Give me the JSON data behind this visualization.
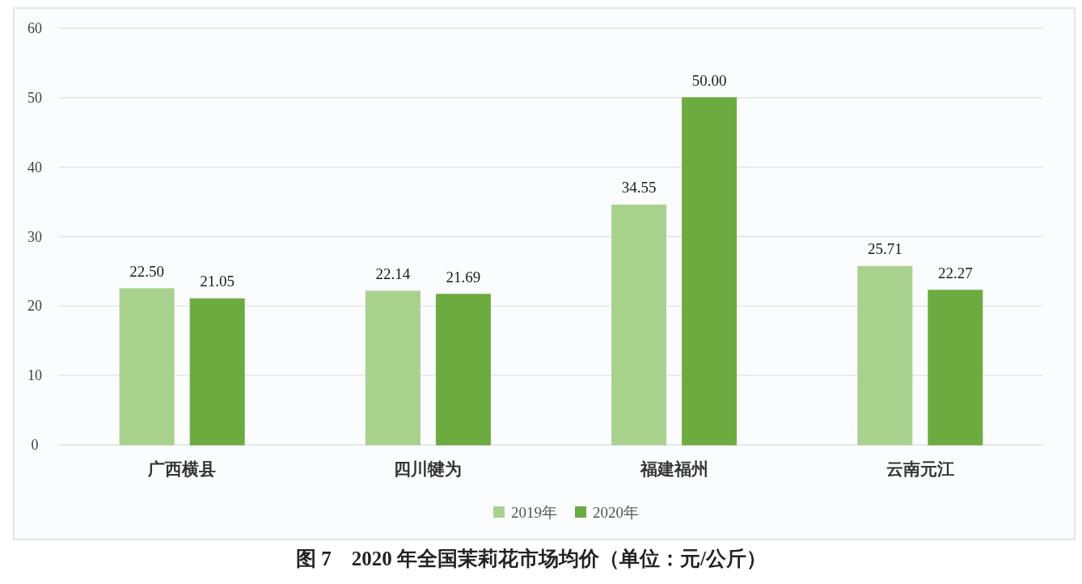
{
  "chart_data": {
    "type": "bar",
    "title": "图 7　2020 年全国茉莉花市场均价（单位：元/公斤）",
    "categories": [
      "广西横县",
      "四川犍为",
      "福建福州",
      "云南元江"
    ],
    "series": [
      {
        "name": "2019年",
        "color": "#a9d18e",
        "values": [
          22.5,
          22.14,
          34.55,
          25.71
        ],
        "value_labels": [
          "22.50",
          "22.14",
          "34.55",
          "25.71"
        ]
      },
      {
        "name": "2020年",
        "color": "#6cab3f",
        "values": [
          21.05,
          21.69,
          50,
          22.27
        ],
        "value_labels": [
          "21.05",
          "21.69",
          "50.00",
          "22.27"
        ]
      }
    ],
    "ylim": [
      0,
      60
    ],
    "yticks": [
      0,
      10,
      20,
      30,
      40,
      50,
      60
    ],
    "grid": "y",
    "legend": "bottom"
  }
}
